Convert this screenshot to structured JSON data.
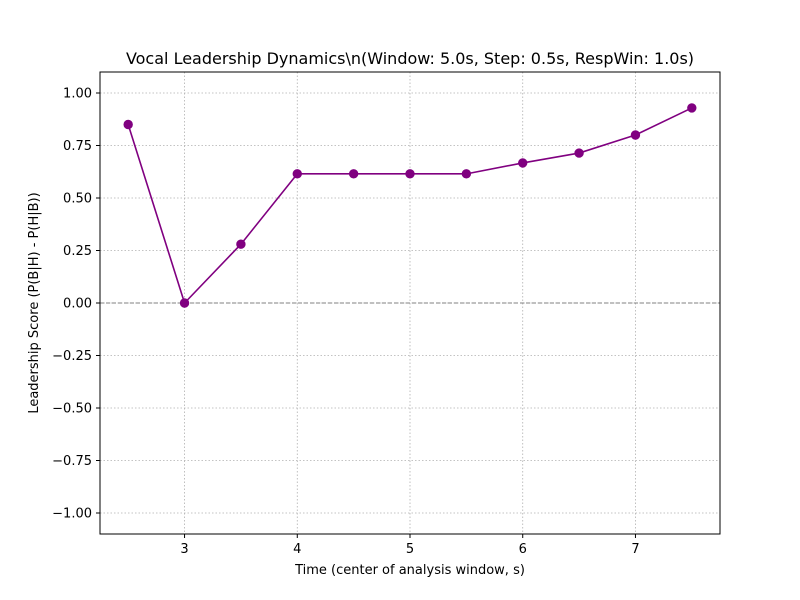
{
  "chart_data": {
    "type": "line",
    "title": "Vocal Leadership Dynamics\\n(Window: 5.0s, Step: 0.5s, RespWin: 1.0s)",
    "xlabel": "Time (center of analysis window, s)",
    "ylabel": "Leadership Score (P(B|H) - P(H|B))",
    "xlim": [
      2.25,
      7.75
    ],
    "ylim": [
      -1.1,
      1.1
    ],
    "xticks": [
      3,
      4,
      5,
      6,
      7
    ],
    "xtick_labels": [
      "3",
      "4",
      "5",
      "6",
      "7"
    ],
    "yticks": [
      -1.0,
      -0.75,
      -0.5,
      -0.25,
      0.0,
      0.25,
      0.5,
      0.75,
      1.0
    ],
    "ytick_labels": [
      "−1.00",
      "−0.75",
      "−0.50",
      "−0.25",
      "0.00",
      "0.25",
      "0.50",
      "0.75",
      "1.00"
    ],
    "grid": true,
    "reference_line": 0.0,
    "series": [
      {
        "x": [
          2.5,
          3.0,
          3.5,
          4.0,
          4.5,
          5.0,
          5.5,
          6.0,
          6.5,
          7.0,
          7.5
        ],
        "y": [
          0.85,
          0.0,
          0.28,
          0.615,
          0.615,
          0.615,
          0.615,
          0.667,
          0.714,
          0.8,
          0.929
        ],
        "color": "#800080",
        "marker": "circle"
      }
    ],
    "colors": {
      "grid": "#b0b0b0",
      "reference_line": "#808080",
      "axes": "#000000"
    }
  }
}
